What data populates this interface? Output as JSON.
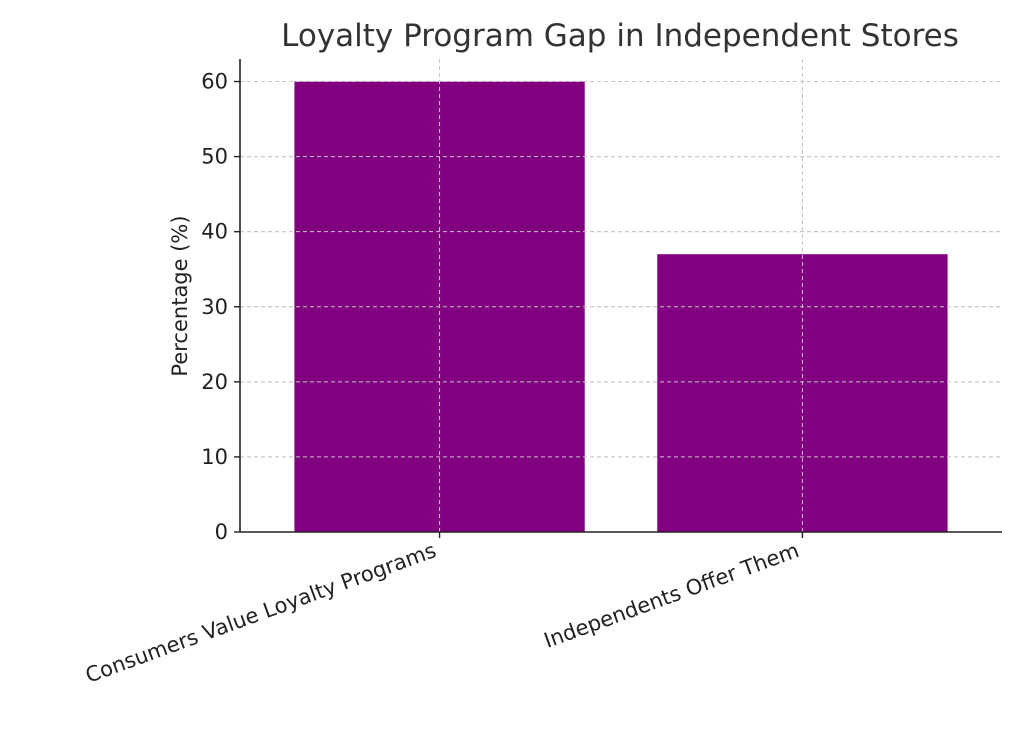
{
  "chart_data": {
    "type": "bar",
    "title": "Loyalty Program Gap in Independent Stores",
    "xlabel": "",
    "ylabel": "Percentage (%)",
    "categories": [
      "Consumers Value Loyalty Programs",
      "Independents Offer Them"
    ],
    "values": [
      60,
      37
    ],
    "ylim": [
      0,
      63
    ],
    "yticks": [
      0,
      10,
      20,
      30,
      40,
      50,
      60
    ],
    "bar_color": "#800080",
    "grid": true
  }
}
